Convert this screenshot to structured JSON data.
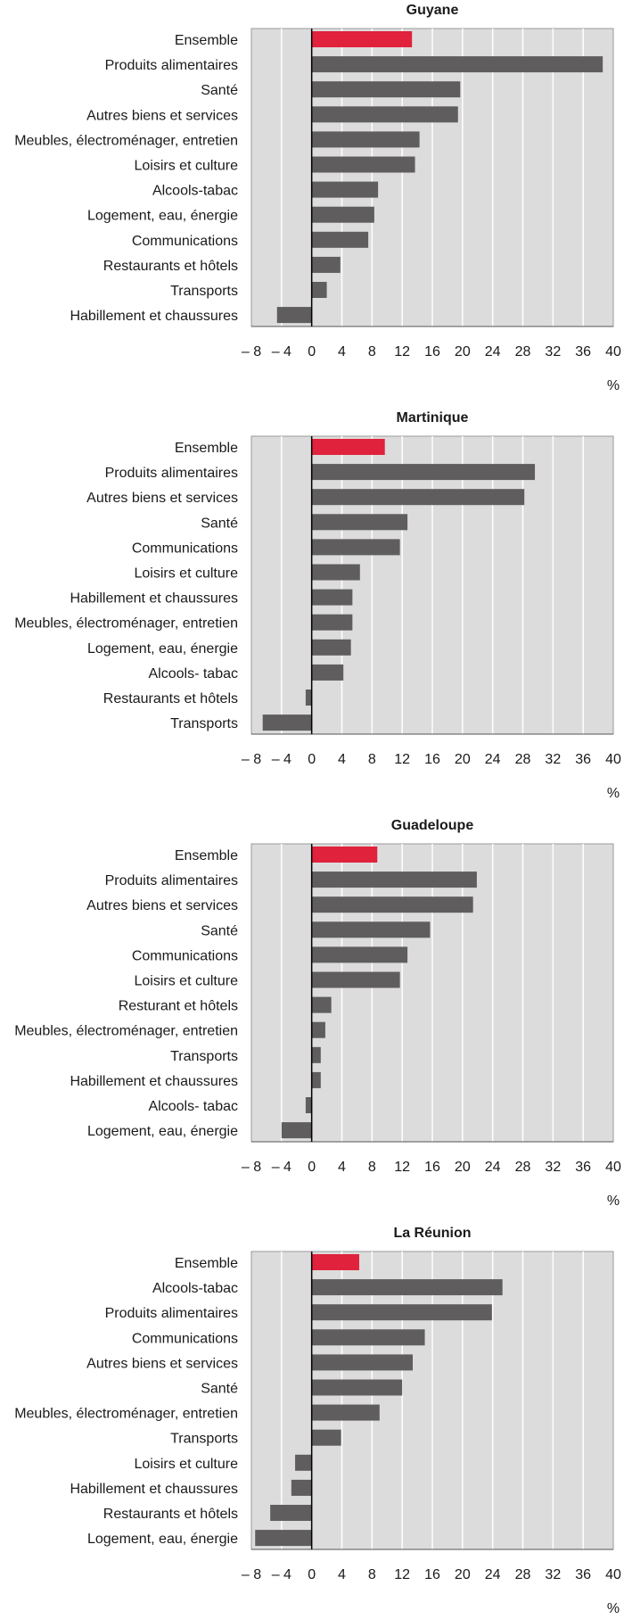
{
  "chart_data": [
    {
      "type": "bar",
      "orientation": "horizontal",
      "title": "Guyane",
      "unit": "%",
      "xlim": [
        -8,
        40
      ],
      "ticks": [
        -8,
        -4,
        0,
        4,
        8,
        12,
        16,
        20,
        24,
        28,
        32,
        36,
        40
      ],
      "tick_labels": [
        "– 8",
        "– 4",
        "0",
        "4",
        "8",
        "12",
        "16",
        "20",
        "24",
        "28",
        "32",
        "36",
        "40"
      ],
      "grid": true,
      "categories": [
        "Ensemble",
        "Produits alimentaires",
        "Santé",
        "Autres biens et services",
        "Meubles, électroménager, entretien",
        "Loisirs et culture",
        "Alcools-tabac",
        "Logement, eau, énergie",
        "Communications",
        "Restaurants et hôtels",
        "Transports",
        "Habillement et chaussures"
      ],
      "values": [
        13.3,
        38.6,
        19.7,
        19.4,
        14.3,
        13.7,
        8.8,
        8.3,
        7.5,
        3.8,
        2.0,
        -4.6
      ],
      "highlight_index": 0,
      "colors": {
        "highlight": "#e0223c",
        "bar": "#5f5d5e",
        "plot_bg": "#dcdcdc",
        "grid": "#ffffff",
        "zero_line": "#000000"
      }
    },
    {
      "type": "bar",
      "orientation": "horizontal",
      "title": "Martinique",
      "unit": "%",
      "xlim": [
        -8,
        40
      ],
      "ticks": [
        -8,
        -4,
        0,
        4,
        8,
        12,
        16,
        20,
        24,
        28,
        32,
        36,
        40
      ],
      "tick_labels": [
        "– 8",
        "– 4",
        "0",
        "4",
        "8",
        "12",
        "16",
        "20",
        "24",
        "28",
        "32",
        "36",
        "40"
      ],
      "grid": true,
      "categories": [
        "Ensemble",
        "Produits alimentaires",
        "Autres biens et services",
        "Santé",
        "Communications",
        "Loisirs et culture",
        "Habillement et chaussures",
        "Meubles, électroménager, entretien",
        "Logement, eau, énergie",
        "Alcools- tabac",
        "Restaurants et hôtels",
        "Transports"
      ],
      "values": [
        9.7,
        29.6,
        28.2,
        12.7,
        11.7,
        6.4,
        5.4,
        5.4,
        5.2,
        4.2,
        -0.8,
        -6.5
      ],
      "highlight_index": 0,
      "colors": {
        "highlight": "#e0223c",
        "bar": "#5f5d5e",
        "plot_bg": "#dcdcdc",
        "grid": "#ffffff",
        "zero_line": "#000000"
      }
    },
    {
      "type": "bar",
      "orientation": "horizontal",
      "title": "Guadeloupe",
      "unit": "%",
      "xlim": [
        -8,
        40
      ],
      "ticks": [
        -8,
        -4,
        0,
        4,
        8,
        12,
        16,
        20,
        24,
        28,
        32,
        36,
        40
      ],
      "tick_labels": [
        "– 8",
        "– 4",
        "0",
        "4",
        "8",
        "12",
        "16",
        "20",
        "24",
        "28",
        "32",
        "36",
        "40"
      ],
      "grid": true,
      "categories": [
        "Ensemble",
        "Produits alimentaires",
        "Autres biens et services",
        "Santé",
        "Communications",
        "Loisirs et culture",
        "Resturant et hôtels",
        "Meubles, électroménager, entretien",
        "Transports",
        "Habillement et chaussures",
        "Alcools- tabac",
        "Logement, eau, énergie"
      ],
      "values": [
        8.7,
        21.9,
        21.4,
        15.7,
        12.7,
        11.7,
        2.6,
        1.8,
        1.2,
        1.2,
        -0.8,
        -4.0
      ],
      "highlight_index": 0,
      "colors": {
        "highlight": "#e0223c",
        "bar": "#5f5d5e",
        "plot_bg": "#dcdcdc",
        "grid": "#ffffff",
        "zero_line": "#000000"
      }
    },
    {
      "type": "bar",
      "orientation": "horizontal",
      "title": "La Réunion",
      "unit": "%",
      "xlim": [
        -8,
        40
      ],
      "ticks": [
        -8,
        -4,
        0,
        4,
        8,
        12,
        16,
        20,
        24,
        28,
        32,
        36,
        40
      ],
      "tick_labels": [
        "– 8",
        "– 4",
        "0",
        "4",
        "8",
        "12",
        "16",
        "20",
        "24",
        "28",
        "32",
        "36",
        "40"
      ],
      "grid": true,
      "categories": [
        "Ensemble",
        "Alcools-tabac",
        "Produits alimentaires",
        "Communications",
        "Autres biens et services",
        "Santé",
        "Meubles, électroménager, entretien",
        "Transports",
        "Loisirs et culture",
        "Habillement et chaussures",
        "Restaurants et hôtels",
        "Logement, eau, énergie"
      ],
      "values": [
        6.3,
        25.3,
        23.9,
        15.0,
        13.4,
        12.0,
        9.0,
        3.9,
        -2.2,
        -2.7,
        -5.5,
        -7.5
      ],
      "highlight_index": 0,
      "colors": {
        "highlight": "#e0223c",
        "bar": "#5f5d5e",
        "plot_bg": "#dcdcdc",
        "grid": "#ffffff",
        "zero_line": "#000000"
      }
    }
  ]
}
